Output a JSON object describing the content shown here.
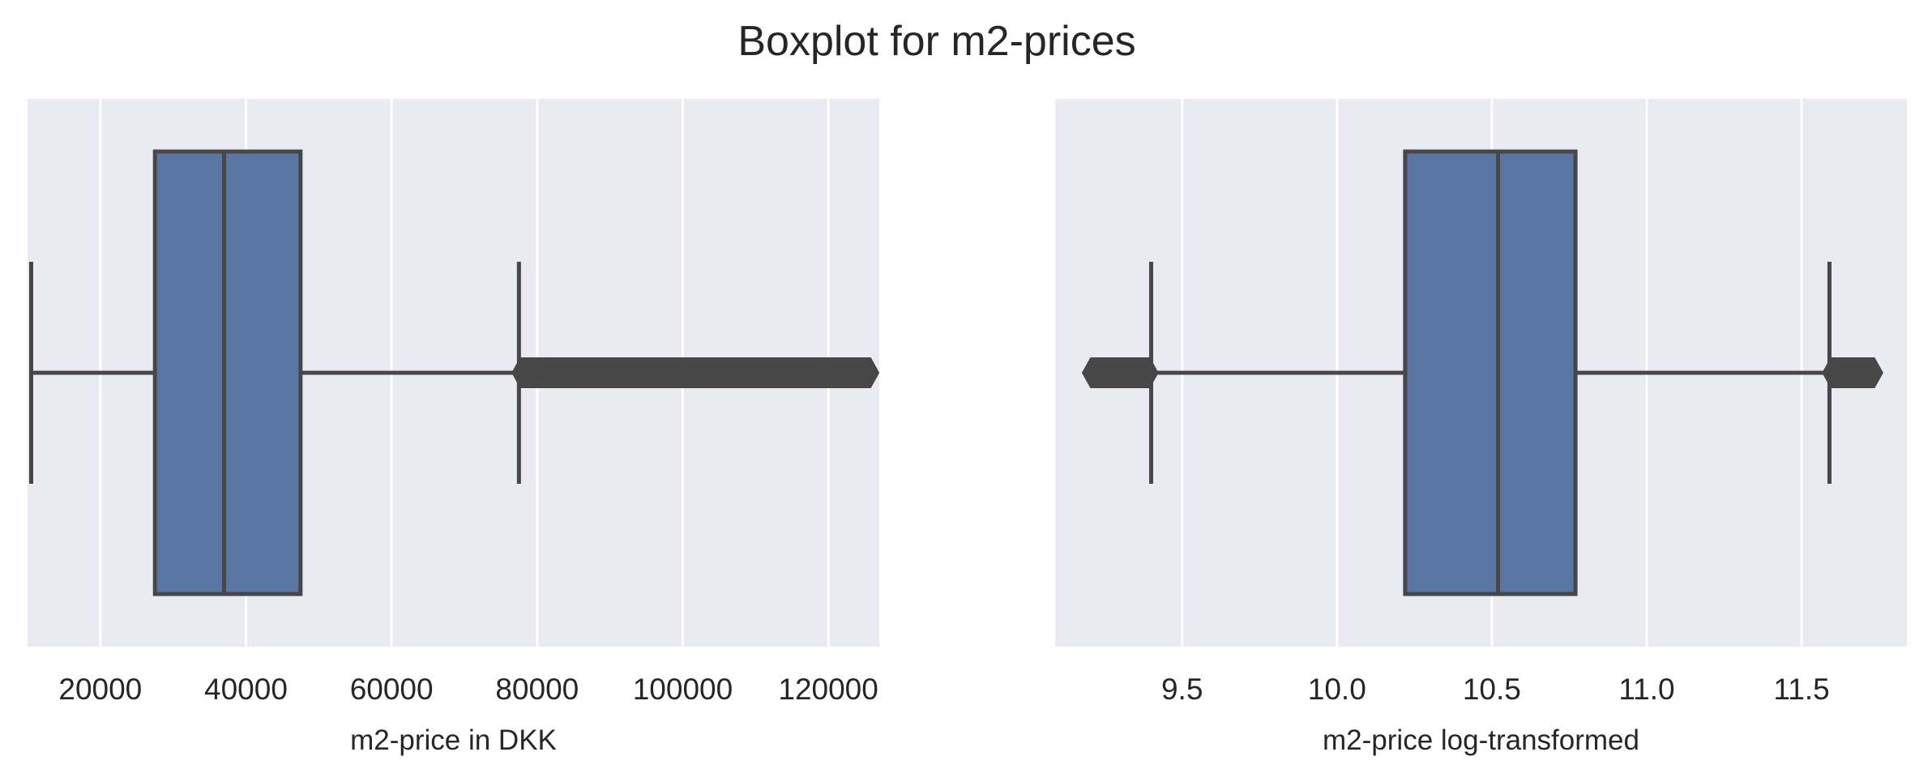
{
  "figure": {
    "title": "Boxplot for m2-prices",
    "colors": {
      "background": "#EAEAF2",
      "grid": "#FFFFFF",
      "box_fill": "#5875A4",
      "line": "#474747",
      "text": "#262626"
    }
  },
  "chart_data": [
    {
      "type": "box",
      "orientation": "horizontal",
      "xlabel": "m2-price in DKK",
      "xlim": [
        10000,
        127000
      ],
      "xticks": [
        20000,
        40000,
        60000,
        80000,
        100000,
        120000
      ],
      "xtick_labels": [
        "20000",
        "40000",
        "60000",
        "80000",
        "100000",
        "120000"
      ],
      "grid": true,
      "box": {
        "whisker_low": 10500,
        "q1": 27500,
        "median": 37000,
        "q3": 47500,
        "whisker_high": 77500
      },
      "outliers_low": [],
      "outliers_high": {
        "from": 77500,
        "to": 126000
      }
    },
    {
      "type": "box",
      "orientation": "horizontal",
      "xlabel": "m2-price log-transformed",
      "xlim": [
        9.09,
        11.84
      ],
      "xticks": [
        9.5,
        10.0,
        10.5,
        11.0,
        11.5
      ],
      "xtick_labels": [
        "9.5",
        "10.0",
        "10.5",
        "11.0",
        "11.5"
      ],
      "grid": true,
      "box": {
        "whisker_low": 9.4,
        "q1": 10.22,
        "median": 10.52,
        "q3": 10.77,
        "whisker_high": 11.59
      },
      "outliers_low": {
        "from": 9.2,
        "to": 9.4
      },
      "outliers_high": {
        "from": 11.59,
        "to": 11.74
      }
    }
  ]
}
